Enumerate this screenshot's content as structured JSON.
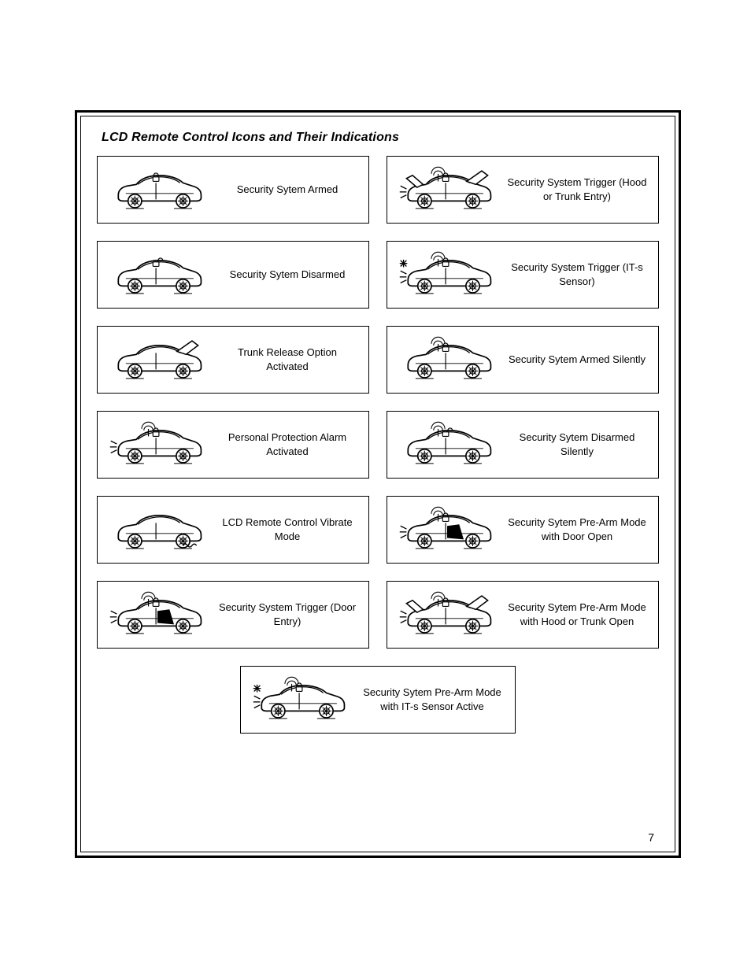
{
  "title": "LCD Remote Control Icons and Their Indications",
  "page_number": "7",
  "colors": {
    "stroke": "#000000",
    "bg": "#ffffff"
  },
  "icons": [
    {
      "id": "armed",
      "label": "Security Sytem Armed",
      "lock": "closed"
    },
    {
      "id": "trigger-hood",
      "label": "Security System Trigger (Hood or Trunk Entry)",
      "lock": "closed",
      "flash": true,
      "hood_open": true,
      "trunk_open": true,
      "signal": true
    },
    {
      "id": "disarmed",
      "label": "Security Sytem Disarmed",
      "lock": "open"
    },
    {
      "id": "trigger-its",
      "label": "Security System Trigger (IT-s Sensor)",
      "lock": "closed",
      "flash": true,
      "signal": true,
      "burst": true
    },
    {
      "id": "trunk-release",
      "label": "Trunk Release Option Activated",
      "trunk_open": true
    },
    {
      "id": "armed-silent",
      "label": "Security Sytem Armed Silently",
      "lock": "closed",
      "signal": true
    },
    {
      "id": "panic",
      "label": "Personal Protection Alarm Activated",
      "lock": "closed",
      "flash": true,
      "signal": true
    },
    {
      "id": "disarmed-silent",
      "label": "Security Sytem Disarmed Silently",
      "lock": "open",
      "signal": true
    },
    {
      "id": "vibrate",
      "label": "LCD Remote Control Vibrate Mode",
      "vibrate": true
    },
    {
      "id": "prearm-door",
      "label": "Security Sytem Pre-Arm Mode with Door Open",
      "lock": "closed",
      "flash": true,
      "door_open": true,
      "signal": true
    },
    {
      "id": "trigger-door",
      "label": "Security System Trigger (Door Entry)",
      "lock": "closed",
      "flash": true,
      "door_open": true,
      "signal": true
    },
    {
      "id": "prearm-hood",
      "label": "Security Sytem Pre-Arm Mode with Hood or Trunk Open",
      "lock": "closed",
      "flash": true,
      "hood_open": true,
      "trunk_open": true,
      "signal": true
    },
    {
      "id": "prearm-its",
      "label": "Security Sytem Pre-Arm Mode with IT-s Sensor Active",
      "lock": "closed",
      "flash": true,
      "signal": true,
      "burst": true
    }
  ],
  "layout": [
    [
      "armed",
      "trigger-hood"
    ],
    [
      "disarmed",
      "trigger-its"
    ],
    [
      "trunk-release",
      "armed-silent"
    ],
    [
      "panic",
      "disarmed-silent"
    ],
    [
      "vibrate",
      "prearm-door"
    ],
    [
      "trigger-door",
      "prearm-hood"
    ],
    [
      "prearm-its"
    ]
  ]
}
